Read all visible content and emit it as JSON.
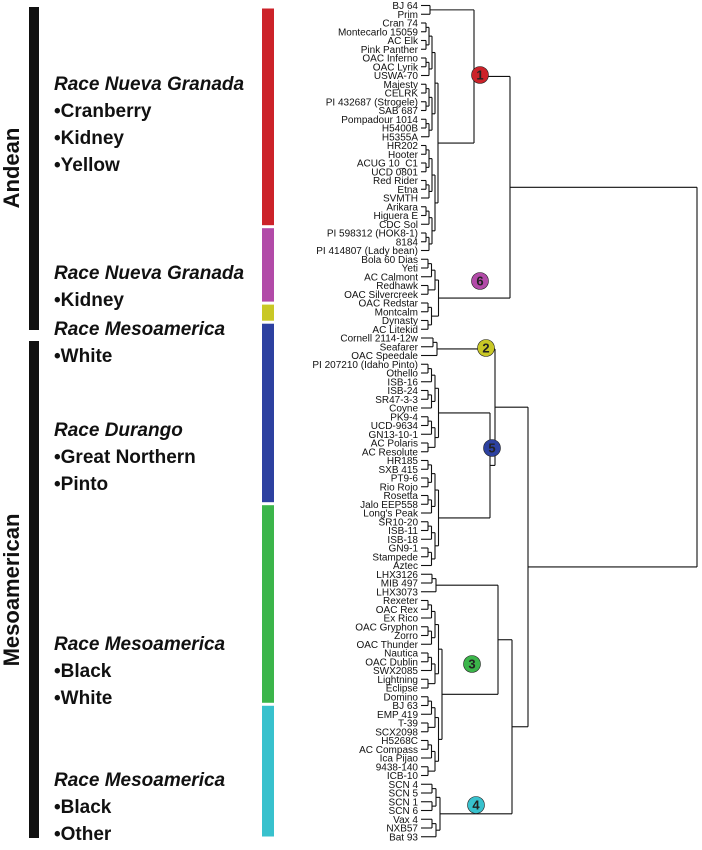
{
  "gene_pools": [
    {
      "id": "andean",
      "label": "Andean",
      "start": 0,
      "end": 30
    },
    {
      "id": "meso",
      "label": "Mesoamerican",
      "start": 31,
      "end": 86
    }
  ],
  "groups": [
    {
      "id": "g1",
      "title": "Race Nueva Granada",
      "items": [
        "•Cranberry",
        "•Kidney",
        "•Yellow"
      ],
      "color": "#cc2229",
      "start": 0,
      "end": 22
    },
    {
      "id": "g2",
      "title": "Race Nueva Granada",
      "items": [
        "•Kidney"
      ],
      "color": "#b24aa8",
      "start": 23,
      "end": 30
    },
    {
      "id": "g3",
      "title": "Race Mesoamerica",
      "items": [
        "•White"
      ],
      "color": "#c9c826",
      "start": 31,
      "end": 32
    },
    {
      "id": "g4",
      "title": "Race Durango",
      "items": [
        "•Great Northern",
        "•Pinto"
      ],
      "color": "#2d41a0",
      "start": 33,
      "end": 51
    },
    {
      "id": "g5",
      "title": "Race Mesoamerica",
      "items": [
        "•Black",
        "•White"
      ],
      "color": "#3bb54a",
      "start": 52,
      "end": 72
    },
    {
      "id": "g6",
      "title": "Race Mesoamerica",
      "items": [
        "•Black",
        "•Other"
      ],
      "color": "#38c1cd",
      "start": 73,
      "end": 86
    }
  ],
  "leaves": [
    "BJ 64",
    "Prim",
    "Cran 74",
    "Montecarlo 15059",
    "AC Elk",
    "Pink Panther",
    "OAC Inferno",
    "OAC Lyrik",
    "USWA-70",
    "Majesty",
    "CELRK",
    "PI 432687 (Strogele)",
    "SAB 687",
    "Pompadour 1014",
    "H5400B",
    "H5355A",
    "HR202",
    "Hooter",
    "ACUG 10_C1",
    "UCD 0801",
    "Red Rider",
    "Etna",
    "SVMTH",
    "Arikara",
    "Higuera E",
    "CDC Sol",
    "PI 598312 (HOK8-1)",
    "8184",
    "PI 414807 (Lady bean)",
    "Bola 60 Dias",
    "Yeti",
    "AC Calmont",
    "Redhawk",
    "OAC Silvercreek",
    "OAC Redstar",
    "Montcalm",
    "Dynasty",
    "AC Litekid",
    "Cornell 2114-12w",
    "Seafarer",
    "OAC Speedale",
    "PI 207210 (Idaho Pinto)",
    "Othello",
    "ISB-16",
    "ISB-24",
    "SR47-3-3",
    "Coyne",
    "PK9-4",
    "UCD-9634",
    "GN13-10-1",
    "AC Polaris",
    "AC Resolute",
    "HR185",
    "SXB 415",
    "PT9-6",
    "Rio Rojo",
    "Rosetta",
    "Jalo EEP558",
    "Long's Peak",
    "SR10-20",
    "ISB-11",
    "ISB-18",
    "GN9-1",
    "Stampede",
    "Aztec",
    "LHX3126",
    "MIB 497",
    "LHX3073",
    "Rexeter",
    "OAC Rex",
    "Ex Rico",
    "OAC Gryphon",
    "Zorro",
    "OAC Thunder",
    "Nautica",
    "OAC Dublin",
    "SWX2085",
    "Lightning",
    "Eclipse",
    "Domino",
    "BJ 63",
    "EMP 419",
    "T-39",
    "SCX2098",
    "H5268C",
    "AC Compass",
    "Ica Pijao",
    "9438-140",
    "ICB-10",
    "SCN 4",
    "SCN 5",
    "SCN 1",
    "SCN 6",
    "Vax 4",
    "NXB57",
    "Bat 93"
  ],
  "clusters": [
    {
      "num": "1",
      "color": "#cc2229",
      "leaf_start": 0,
      "leaf_end": 28
    },
    {
      "num": "6",
      "color": "#b24aa8",
      "leaf_start": 29,
      "leaf_end": 37
    },
    {
      "num": "2",
      "color": "#c9c826",
      "leaf_start": 38,
      "leaf_end": 40
    },
    {
      "num": "5",
      "color": "#2d41a0",
      "leaf_start": 41,
      "leaf_end": 64
    },
    {
      "num": "3",
      "color": "#3bb54a",
      "leaf_start": 65,
      "leaf_end": 88
    },
    {
      "num": "4",
      "color": "#38c1cd",
      "leaf_start": 89,
      "leaf_end": 95
    }
  ]
}
